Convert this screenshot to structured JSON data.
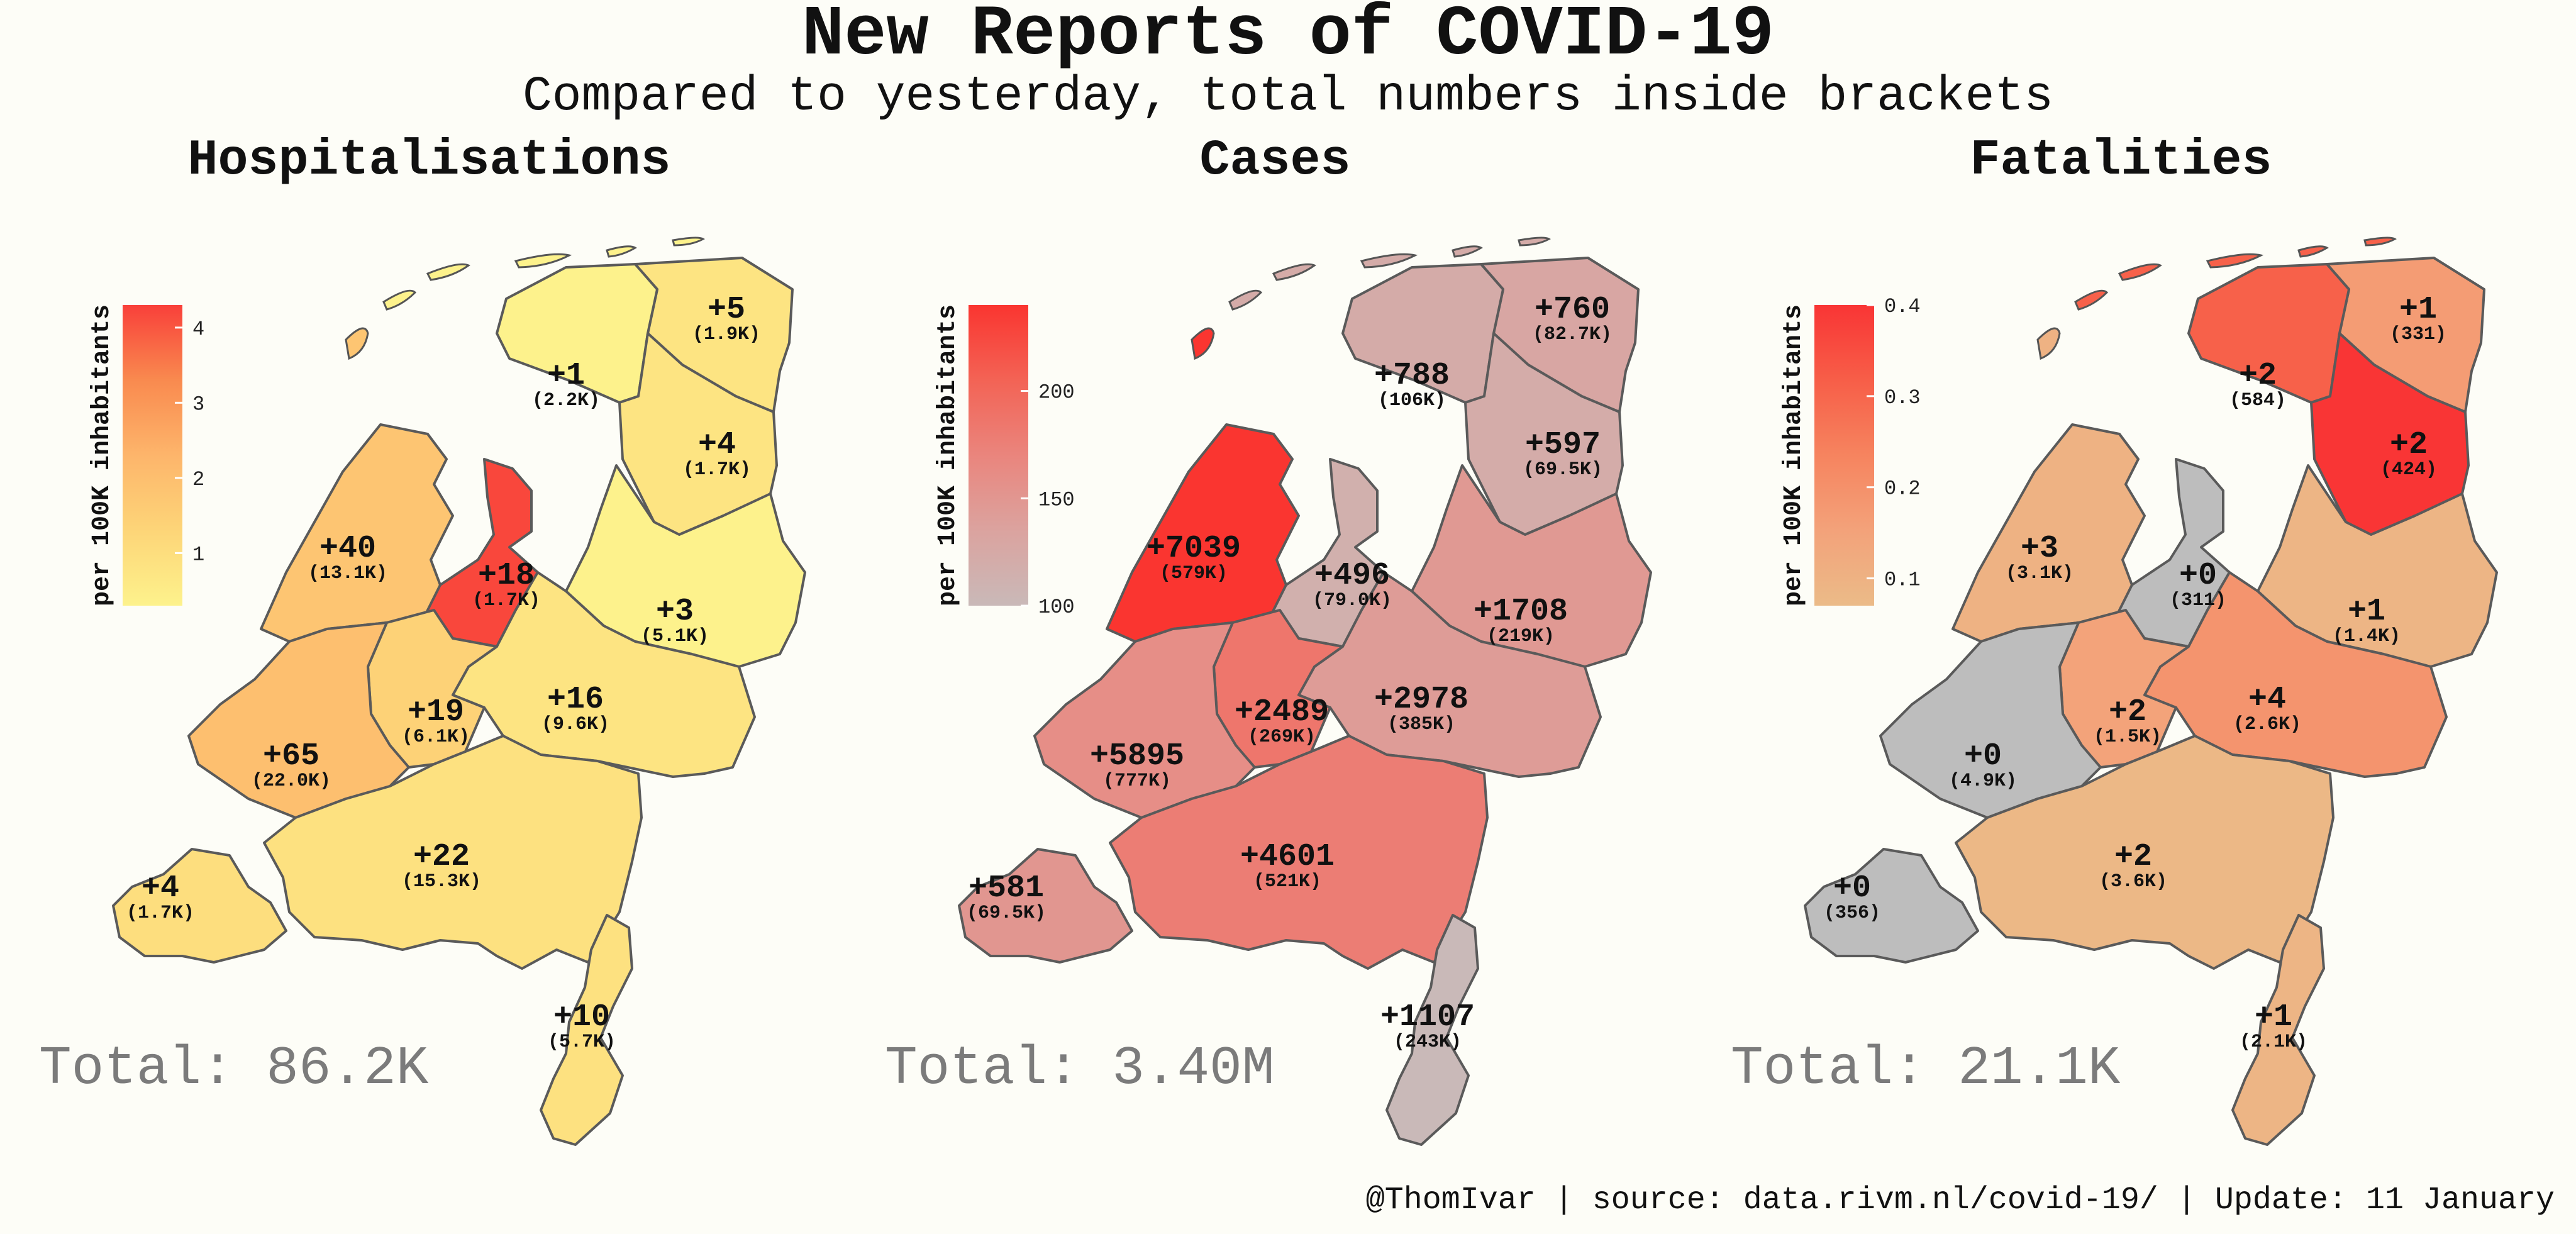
{
  "title": "New Reports of COVID-19",
  "subtitle": "Compared to yesterday, total numbers inside brackets",
  "footer": "@ThomIvar | source: data.rivm.nl/covid-19/ | Update: 11 January",
  "chart_data": [
    {
      "type": "choropleth",
      "title": "Hospitalisations",
      "legend_label": "per 100K inhabitants",
      "legend_ticks": [
        "1",
        "2",
        "3",
        "4"
      ],
      "legend_range": [
        0.3,
        4.3
      ],
      "color_scale": [
        "#fdf28c",
        "#fdd578",
        "#fdb56b",
        "#f98a4f",
        "#f9403a"
      ],
      "total": "Total: 86.2K",
      "regions": [
        {
          "name": "Groningen",
          "value": 0.8,
          "change": "+5",
          "total": "(1.9K)"
        },
        {
          "name": "Friesland",
          "value": 0.3,
          "change": "+1",
          "total": "(2.2K)"
        },
        {
          "name": "Drenthe",
          "value": 0.8,
          "change": "+4",
          "total": "(1.7K)"
        },
        {
          "name": "Noord-Holland",
          "value": 1.8,
          "change": "+40",
          "total": "(13.1K)"
        },
        {
          "name": "Flevoland",
          "value": 4.2,
          "change": "+18",
          "total": "(1.7K)"
        },
        {
          "name": "Overijssel",
          "value": 0.3,
          "change": "+3",
          "total": "(5.1K)"
        },
        {
          "name": "Gelderland",
          "value": 0.8,
          "change": "+16",
          "total": "(9.6K)"
        },
        {
          "name": "Utrecht",
          "value": 1.4,
          "change": "+19",
          "total": "(6.1K)"
        },
        {
          "name": "Zuid-Holland",
          "value": 2.0,
          "change": "+65",
          "total": "(22.0K)"
        },
        {
          "name": "Noord-Brabant",
          "value": 0.9,
          "change": "+22",
          "total": "(15.3K)"
        },
        {
          "name": "Zeeland",
          "value": 1.0,
          "change": "+4",
          "total": "(1.7K)"
        },
        {
          "name": "Limburg",
          "value": 0.9,
          "change": "+10",
          "total": "(5.7K)"
        }
      ]
    },
    {
      "type": "choropleth",
      "title": "Cases",
      "legend_label": "per 100K inhabitants",
      "legend_ticks": [
        "100",
        "150",
        "200"
      ],
      "legend_range": [
        100,
        240
      ],
      "color_scale": [
        "#c9b9b8",
        "#dba39f",
        "#ea857d",
        "#f36355",
        "#fa3530"
      ],
      "total": "Total: 3.40M",
      "regions": [
        {
          "name": "Groningen",
          "value": 130,
          "change": "+760",
          "total": "(82.7K)"
        },
        {
          "name": "Friesland",
          "value": 122,
          "change": "+788",
          "total": "(106K)"
        },
        {
          "name": "Drenthe",
          "value": 121,
          "change": "+597",
          "total": "(69.5K)"
        },
        {
          "name": "Noord-Holland",
          "value": 240,
          "change": "+7039",
          "total": "(579K)"
        },
        {
          "name": "Flevoland",
          "value": 115,
          "change": "+496",
          "total": "(79.0K)"
        },
        {
          "name": "Overijssel",
          "value": 147,
          "change": "+1708",
          "total": "(219K)"
        },
        {
          "name": "Gelderland",
          "value": 143,
          "change": "+2978",
          "total": "(385K)"
        },
        {
          "name": "Utrecht",
          "value": 185,
          "change": "+2489",
          "total": "(269K)"
        },
        {
          "name": "Zuid-Holland",
          "value": 160,
          "change": "+5895",
          "total": "(777K)"
        },
        {
          "name": "Noord-Brabant",
          "value": 178,
          "change": "+4601",
          "total": "(521K)"
        },
        {
          "name": "Zeeland",
          "value": 150,
          "change": "+581",
          "total": "(69.5K)"
        },
        {
          "name": "Limburg",
          "value": 100,
          "change": "+1107",
          "total": "(243K)"
        }
      ]
    },
    {
      "type": "choropleth",
      "title": "Fatalities",
      "legend_label": "per 100K inhabitants",
      "legend_ticks": [
        "0.1",
        "0.2",
        "0.3",
        "0.4"
      ],
      "legend_range": [
        0.07,
        0.4
      ],
      "color_scale": [
        "#ebbb88",
        "#f3a27a",
        "#f6845f",
        "#f75e48",
        "#f93535"
      ],
      "zero_color": "#bdbdbd",
      "total": "Total: 21.1K",
      "regions": [
        {
          "name": "Groningen",
          "value": 0.17,
          "change": "+1",
          "total": "(331)"
        },
        {
          "name": "Friesland",
          "value": 0.31,
          "change": "+2",
          "total": "(584)"
        },
        {
          "name": "Drenthe",
          "value": 0.4,
          "change": "+2",
          "total": "(424)"
        },
        {
          "name": "Noord-Holland",
          "value": 0.1,
          "change": "+3",
          "total": "(3.1K)"
        },
        {
          "name": "Flevoland",
          "value": 0,
          "change": "+0",
          "total": "(311)"
        },
        {
          "name": "Overijssel",
          "value": 0.09,
          "change": "+1",
          "total": "(1.4K)"
        },
        {
          "name": "Gelderland",
          "value": 0.19,
          "change": "+4",
          "total": "(2.6K)"
        },
        {
          "name": "Utrecht",
          "value": 0.15,
          "change": "+2",
          "total": "(1.5K)"
        },
        {
          "name": "Zuid-Holland",
          "value": 0,
          "change": "+0",
          "total": "(4.9K)"
        },
        {
          "name": "Noord-Brabant",
          "value": 0.08,
          "change": "+2",
          "total": "(3.6K)"
        },
        {
          "name": "Zeeland",
          "value": 0,
          "change": "+0",
          "total": "(356)"
        },
        {
          "name": "Limburg",
          "value": 0.09,
          "change": "+1",
          "total": "(2.1K)"
        }
      ]
    }
  ]
}
